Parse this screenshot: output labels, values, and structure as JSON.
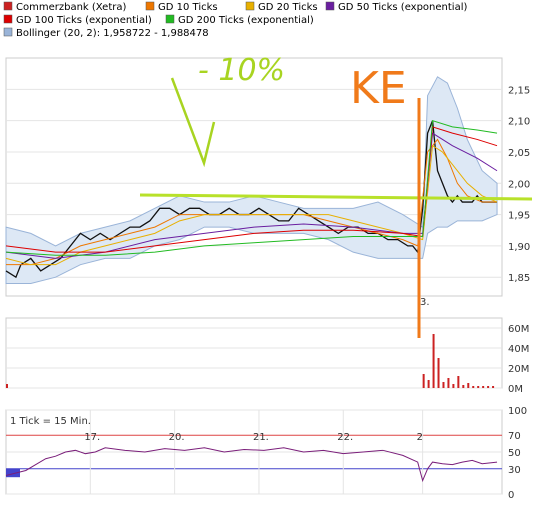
{
  "legend": [
    {
      "label": "Commerzbank (Xetra)",
      "color": "#cc2222"
    },
    {
      "label": "GD 10 Ticks",
      "color": "#ee7700"
    },
    {
      "label": "GD 20 Ticks",
      "color": "#e8b000"
    },
    {
      "label": "GD 50 Ticks (exponential)",
      "color": "#6a1ea0"
    },
    {
      "label": "GD 100 Ticks (exponential)",
      "color": "#dd0000"
    },
    {
      "label": "GD 200 Ticks (exponential)",
      "color": "#22bb22"
    },
    {
      "label": "Bollinger (20, 2): 1,958722 - 1,988478",
      "color": "#9ab4d8"
    }
  ],
  "annotations": {
    "tick_note": "1 Tick = 15 Min.",
    "handwritten_percent": "- 10%",
    "handwritten_word": "KE",
    "date_marker": "3."
  },
  "chart_data": [
    {
      "type": "line",
      "name": "price",
      "ylim": [
        1.82,
        2.2
      ],
      "yticks": [
        "2,15",
        "2,10",
        "2,05",
        "2,00",
        "1,95",
        "1,90",
        "1,85"
      ],
      "ytick_values": [
        2.15,
        2.1,
        2.05,
        2.0,
        1.95,
        1.9,
        1.85
      ],
      "xlim": [
        0,
        1.0
      ],
      "series": [
        {
          "role": "price",
          "color": "#111111",
          "x": [
            0.0,
            0.02,
            0.03,
            0.05,
            0.07,
            0.09,
            0.11,
            0.13,
            0.15,
            0.17,
            0.19,
            0.21,
            0.23,
            0.25,
            0.27,
            0.29,
            0.31,
            0.33,
            0.35,
            0.37,
            0.39,
            0.41,
            0.43,
            0.45,
            0.47,
            0.49,
            0.51,
            0.53,
            0.55,
            0.57,
            0.59,
            0.61,
            0.63,
            0.65,
            0.67,
            0.69,
            0.71,
            0.73,
            0.75,
            0.77,
            0.79,
            0.81,
            0.82,
            0.83,
            0.84,
            0.85,
            0.86,
            0.87,
            0.88,
            0.89,
            0.9,
            0.91,
            0.92,
            0.93,
            0.94,
            0.95,
            0.96,
            0.97,
            0.98,
            0.99
          ],
          "y": [
            1.86,
            1.85,
            1.87,
            1.88,
            1.86,
            1.87,
            1.88,
            1.9,
            1.92,
            1.91,
            1.92,
            1.91,
            1.92,
            1.93,
            1.93,
            1.94,
            1.96,
            1.96,
            1.95,
            1.96,
            1.96,
            1.95,
            1.95,
            1.96,
            1.95,
            1.95,
            1.96,
            1.95,
            1.94,
            1.94,
            1.96,
            1.95,
            1.94,
            1.93,
            1.92,
            1.93,
            1.93,
            1.92,
            1.92,
            1.91,
            1.91,
            1.9,
            1.9,
            1.89,
            1.96,
            2.08,
            2.1,
            2.02,
            2.0,
            1.98,
            1.97,
            1.98,
            1.97,
            1.97,
            1.97,
            1.98,
            1.97,
            1.97,
            1.97,
            1.97
          ]
        },
        {
          "role": "sma10",
          "color": "#ee7700",
          "x": [
            0.0,
            0.05,
            0.1,
            0.15,
            0.2,
            0.25,
            0.3,
            0.35,
            0.4,
            0.45,
            0.5,
            0.55,
            0.6,
            0.65,
            0.7,
            0.75,
            0.8,
            0.83,
            0.85,
            0.87,
            0.89,
            0.91,
            0.93,
            0.96,
            0.99
          ],
          "y": [
            1.87,
            1.87,
            1.88,
            1.9,
            1.91,
            1.92,
            1.93,
            1.95,
            1.95,
            1.95,
            1.95,
            1.95,
            1.95,
            1.94,
            1.93,
            1.92,
            1.91,
            1.9,
            2.05,
            2.07,
            2.04,
            2.0,
            1.98,
            1.97,
            1.97
          ]
        },
        {
          "role": "sma20",
          "color": "#e8b000",
          "x": [
            0.0,
            0.05,
            0.1,
            0.15,
            0.2,
            0.25,
            0.3,
            0.35,
            0.4,
            0.45,
            0.5,
            0.55,
            0.6,
            0.65,
            0.7,
            0.75,
            0.8,
            0.84,
            0.86,
            0.88,
            0.9,
            0.93,
            0.96,
            0.99
          ],
          "y": [
            1.88,
            1.87,
            1.87,
            1.89,
            1.9,
            1.91,
            1.92,
            1.94,
            1.95,
            1.95,
            1.95,
            1.95,
            1.95,
            1.95,
            1.94,
            1.93,
            1.92,
            1.91,
            2.06,
            2.05,
            2.03,
            2.0,
            1.98,
            1.97
          ]
        },
        {
          "role": "ema50",
          "color": "#6a1ea0",
          "x": [
            0.0,
            0.1,
            0.2,
            0.3,
            0.4,
            0.5,
            0.6,
            0.7,
            0.8,
            0.84,
            0.86,
            0.9,
            0.95,
            0.99
          ],
          "y": [
            1.89,
            1.88,
            1.89,
            1.91,
            1.92,
            1.93,
            1.935,
            1.93,
            1.92,
            1.92,
            2.08,
            2.06,
            2.04,
            2.02
          ]
        },
        {
          "role": "ema100",
          "color": "#dd0000",
          "x": [
            0.0,
            0.1,
            0.2,
            0.3,
            0.4,
            0.5,
            0.6,
            0.7,
            0.8,
            0.84,
            0.86,
            0.9,
            0.95,
            0.99
          ],
          "y": [
            1.9,
            1.89,
            1.89,
            1.9,
            1.91,
            1.92,
            1.925,
            1.925,
            1.92,
            1.915,
            2.09,
            2.08,
            2.07,
            2.06
          ]
        },
        {
          "role": "ema200",
          "color": "#22bb22",
          "x": [
            0.0,
            0.1,
            0.2,
            0.3,
            0.4,
            0.5,
            0.6,
            0.7,
            0.8,
            0.84,
            0.86,
            0.9,
            0.95,
            0.99
          ],
          "y": [
            1.89,
            1.885,
            1.885,
            1.89,
            1.9,
            1.905,
            1.91,
            1.915,
            1.915,
            1.915,
            2.1,
            2.09,
            2.085,
            2.08
          ]
        },
        {
          "role": "bollinger_upper",
          "color": "#9ab4d8",
          "x": [
            0.0,
            0.05,
            0.1,
            0.15,
            0.2,
            0.25,
            0.3,
            0.35,
            0.4,
            0.45,
            0.5,
            0.55,
            0.6,
            0.65,
            0.7,
            0.75,
            0.8,
            0.84,
            0.85,
            0.87,
            0.89,
            0.91,
            0.93,
            0.96,
            0.99
          ],
          "y": [
            1.93,
            1.92,
            1.9,
            1.92,
            1.93,
            1.94,
            1.96,
            1.98,
            1.97,
            1.97,
            1.98,
            1.97,
            1.96,
            1.96,
            1.96,
            1.97,
            1.95,
            1.93,
            2.14,
            2.17,
            2.16,
            2.12,
            2.07,
            2.02,
            2.0
          ]
        },
        {
          "role": "bollinger_lower",
          "color": "#9ab4d8",
          "x": [
            0.0,
            0.05,
            0.1,
            0.15,
            0.2,
            0.25,
            0.3,
            0.35,
            0.4,
            0.45,
            0.5,
            0.55,
            0.6,
            0.65,
            0.7,
            0.75,
            0.8,
            0.84,
            0.85,
            0.87,
            0.89,
            0.91,
            0.93,
            0.96,
            0.99
          ],
          "y": [
            1.84,
            1.84,
            1.85,
            1.87,
            1.88,
            1.88,
            1.9,
            1.91,
            1.93,
            1.93,
            1.92,
            1.92,
            1.92,
            1.91,
            1.89,
            1.88,
            1.88,
            1.88,
            1.92,
            1.93,
            1.93,
            1.94,
            1.94,
            1.94,
            1.95
          ]
        }
      ]
    },
    {
      "type": "bar",
      "name": "volume",
      "ylim": [
        0,
        70
      ],
      "yticks": [
        "60M",
        "40M",
        "20M",
        "0M"
      ],
      "ytick_values": [
        60,
        40,
        20,
        0
      ],
      "x": [
        0.0,
        0.84,
        0.85,
        0.86,
        0.87,
        0.88,
        0.89,
        0.9,
        0.91,
        0.92,
        0.93,
        0.94,
        0.95,
        0.96,
        0.97,
        0.98
      ],
      "values": [
        4,
        14,
        8,
        54,
        30,
        6,
        10,
        4,
        12,
        3,
        5,
        2,
        2,
        2,
        2,
        2
      ]
    },
    {
      "type": "line",
      "name": "rsi",
      "ylim": [
        0,
        100
      ],
      "yticks": [
        "100",
        "70",
        "50",
        "30",
        "0"
      ],
      "ytick_values": [
        100,
        70,
        50,
        30,
        0
      ],
      "xticks": [
        "17.",
        "20.",
        "21.",
        "22.",
        "2"
      ],
      "xtick_values": [
        0.17,
        0.34,
        0.51,
        0.68,
        0.84
      ],
      "x": [
        0.0,
        0.02,
        0.04,
        0.06,
        0.08,
        0.1,
        0.12,
        0.14,
        0.16,
        0.18,
        0.2,
        0.24,
        0.28,
        0.32,
        0.36,
        0.4,
        0.44,
        0.48,
        0.52,
        0.56,
        0.6,
        0.64,
        0.68,
        0.72,
        0.76,
        0.8,
        0.83,
        0.84,
        0.85,
        0.86,
        0.88,
        0.9,
        0.92,
        0.94,
        0.96,
        0.99
      ],
      "values": [
        22,
        25,
        28,
        35,
        42,
        45,
        50,
        52,
        48,
        50,
        55,
        52,
        50,
        54,
        52,
        55,
        50,
        53,
        52,
        55,
        50,
        52,
        48,
        50,
        52,
        46,
        38,
        16,
        30,
        38,
        36,
        35,
        38,
        40,
        36,
        38
      ]
    }
  ]
}
